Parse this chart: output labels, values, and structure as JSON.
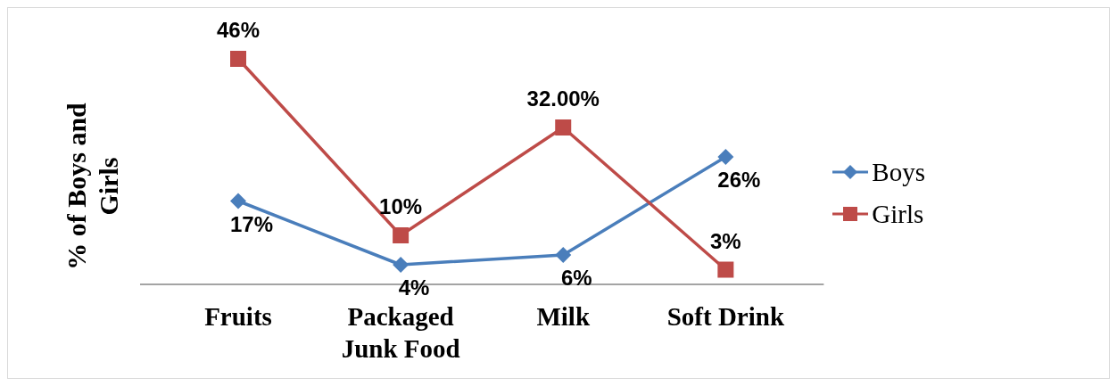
{
  "chart_data": {
    "type": "line",
    "ylabel": "% of Boys and Girls",
    "categories": [
      "Fruits",
      "Packaged Junk Food",
      "Milk",
      "Soft Drink"
    ],
    "legend": "right",
    "series": [
      {
        "name": "Boys",
        "color": "#4a7ebb",
        "marker": "diamond",
        "values": [
          17,
          4,
          6,
          26
        ],
        "value_labels": [
          "17%",
          "4%",
          "6%",
          "26%"
        ]
      },
      {
        "name": "Girls",
        "color": "#be4b48",
        "marker": "square",
        "values": [
          46,
          10,
          32,
          3
        ],
        "value_labels": [
          "46%",
          "10%",
          "32.00%",
          "3%"
        ]
      }
    ]
  }
}
